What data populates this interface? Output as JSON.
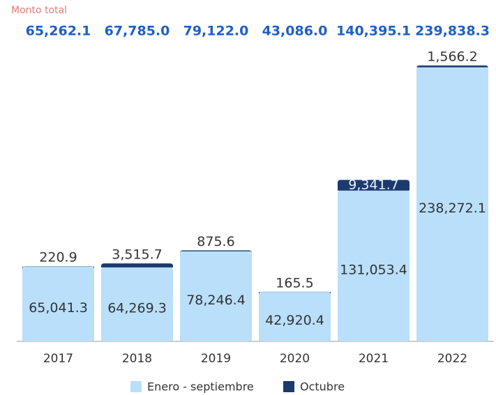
{
  "chart_data": {
    "type": "stacked_bar",
    "total_title": "Monto total",
    "totals": {
      "values": [
        65262.1,
        67785.0,
        79122.0,
        43086.0,
        140395.1,
        239838.3
      ],
      "value_labels": [
        "65,262.1",
        "67,785.0",
        "79,122.0",
        "43,086.0",
        "140,395.1",
        "239,838.3"
      ]
    },
    "categories": [
      "2017",
      "2018",
      "2019",
      "2020",
      "2021",
      "2022"
    ],
    "series": [
      {
        "name": "Enero - septiembre",
        "color": "#b9dffa",
        "values": [
          65041.3,
          64269.3,
          78246.4,
          42920.4,
          131053.4,
          238272.1
        ],
        "value_labels": [
          "65,041.3",
          "64,269.3",
          "78,246.4",
          "42,920.4",
          "131,053.4",
          "238,272.1"
        ]
      },
      {
        "name": "Octubre",
        "color": "#1c3a6e",
        "values": [
          220.9,
          3515.7,
          875.6,
          165.5,
          9341.7,
          1566.2
        ],
        "value_labels": [
          "220.9",
          "3,515.7",
          "875.6",
          "165.5",
          "9,341.7",
          "1,566.2"
        ]
      }
    ]
  }
}
